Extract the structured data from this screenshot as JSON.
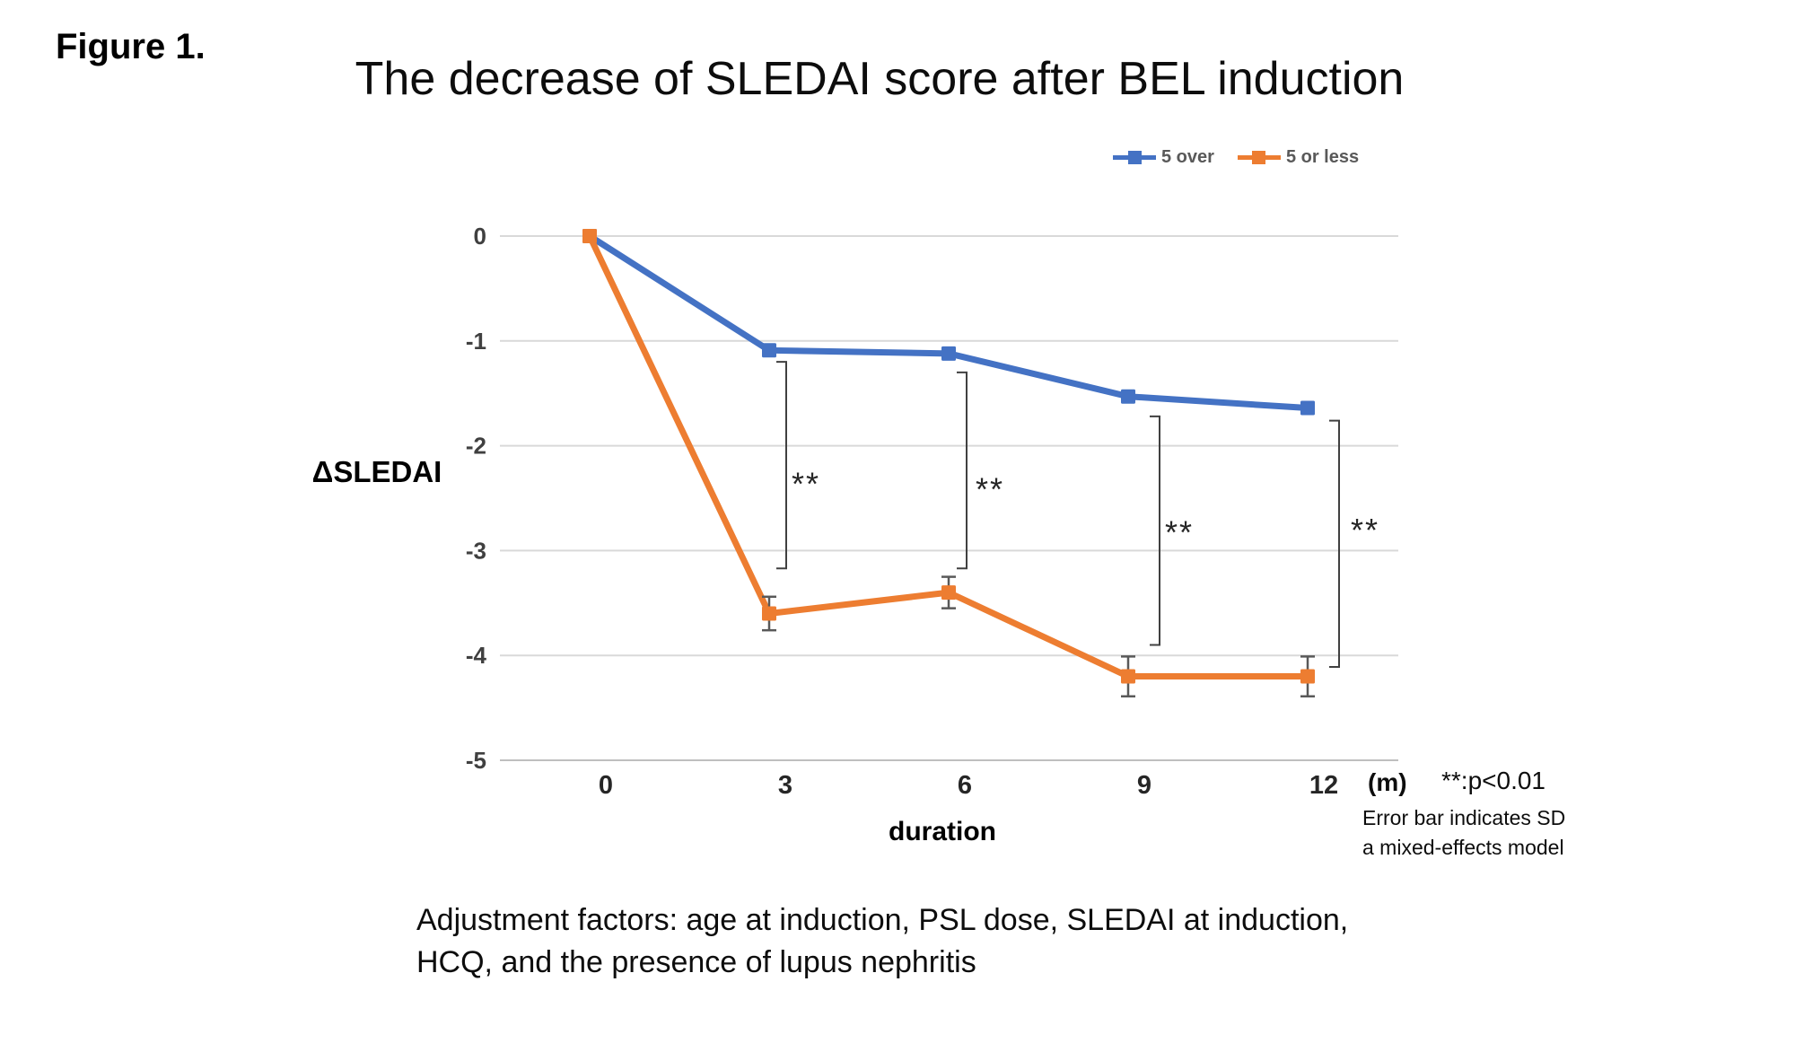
{
  "figure_label": "Figure 1.",
  "notes": {
    "significance": "**:p<0.01",
    "error_bar": "Error bar indicates SD",
    "model": "a mixed-effects model"
  },
  "caption": {
    "line1": "Adjustment factors: age at induction, PSL dose, SLEDAI at induction,",
    "line2": "HCQ, and the presence of lupus nephritis"
  },
  "chart_data": {
    "type": "line",
    "title": "The decrease of SLEDAI score after BEL induction",
    "xlabel": "duration",
    "ylabel": "ΔSLEDAI",
    "x_unit": "(m)",
    "x": [
      0,
      3,
      6,
      9,
      12
    ],
    "x_tick_labels": [
      "0",
      "3",
      "6",
      "9",
      "12"
    ],
    "yticks": [
      0,
      -1,
      -2,
      -3,
      -4,
      -5
    ],
    "ylim": [
      -5,
      0
    ],
    "grid": "horizontal",
    "legend_position": "top-right",
    "series": [
      {
        "name": "5 over",
        "color": "#4472C4",
        "values": [
          0,
          -1.09,
          -1.12,
          -1.53,
          -1.64
        ],
        "sd": null
      },
      {
        "name": "5 or less",
        "color": "#ED7D31",
        "values": [
          0,
          -3.6,
          -3.4,
          -4.2,
          -4.2
        ],
        "sd": [
          null,
          0.16,
          0.15,
          0.19,
          0.19
        ]
      }
    ],
    "significance_brackets": [
      {
        "at_month": 3,
        "x_offset": 19,
        "from": -1.2,
        "to": -3.17,
        "label": "**",
        "label_at": -2.3,
        "label_dx": 22
      },
      {
        "at_month": 6,
        "x_offset": 20,
        "from": -1.3,
        "to": -3.17,
        "label": "**",
        "label_at": -2.35,
        "label_dx": 26
      },
      {
        "at_month": 9,
        "x_offset": 35,
        "from": -1.72,
        "to": -3.9,
        "label": "**",
        "label_at": -2.76,
        "label_dx": 22
      },
      {
        "at_month": 12,
        "x_offset": 35,
        "from": -1.76,
        "to": -4.11,
        "label": "**",
        "label_at": -2.74,
        "label_dx": 29
      }
    ],
    "colors": {
      "gridline": "#d9d9d9",
      "axis_line": "#bfbfbf",
      "error_bar": "#595959",
      "bracket": "#404040"
    }
  }
}
